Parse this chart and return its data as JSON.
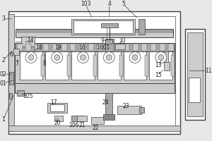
{
  "bg_color": "#e8e8e8",
  "line_color": "#404040",
  "fill_light": "#cccccc",
  "fill_mid": "#aaaaaa",
  "fill_dark": "#888888",
  "white": "#ffffff",
  "fig_w": 3.0,
  "fig_h": 2.0
}
